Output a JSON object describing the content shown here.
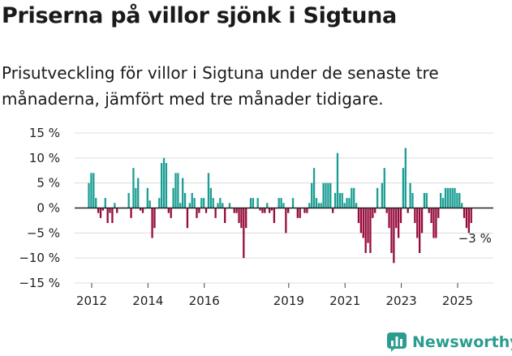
{
  "title": "Priserna på villor sjönk i Sigtuna",
  "subtitle": "Prisutveckling för villor i Sigtuna under de senaste tre månaderna, jämfört med tre månader tidigare.",
  "brand": "Newsworthy",
  "colors": {
    "positive": "#1a9e93",
    "negative": "#960a3c",
    "grid": "#dcdcdc",
    "zero": "#222222"
  },
  "chart_data": {
    "type": "bar",
    "title": "Priserna på villor sjönk i Sigtuna",
    "ylabel": "",
    "xlabel": "",
    "ylim": [
      -15,
      15
    ],
    "y_ticks": [
      15,
      10,
      5,
      0,
      -5,
      -10,
      -15
    ],
    "y_tick_labels": [
      "15 %",
      "10 %",
      "5 %",
      "0 %",
      "−5 %",
      "−10 %",
      "−15 %"
    ],
    "x_ticks": [
      2012,
      2014,
      2016,
      2019,
      2021,
      2023,
      2025
    ],
    "x_start": 2011.9,
    "step_years": 0.08333,
    "last_value_label": "−3 %",
    "values": [
      5,
      7,
      7,
      2,
      -1,
      -2,
      -0.5,
      2,
      -3,
      -1,
      -3,
      1,
      -1,
      0,
      0,
      0,
      0,
      3,
      -2,
      8,
      4,
      6,
      -0.5,
      -1,
      0,
      4,
      1.5,
      -6,
      -4,
      0,
      2,
      9,
      10,
      9,
      -1,
      -2,
      4,
      7,
      7,
      1,
      6,
      3,
      -4,
      1,
      3,
      2,
      -2,
      -1,
      2,
      2,
      -1,
      7,
      4,
      2,
      -2,
      1,
      2,
      1,
      -3,
      0,
      1,
      0,
      -1,
      -1,
      -3,
      -4,
      -10,
      -4,
      0,
      2,
      2,
      0,
      2,
      -0.5,
      -1,
      -1,
      1,
      -1,
      -0.5,
      -3,
      0,
      2,
      2,
      1,
      -5,
      -1,
      0,
      2,
      0,
      -2,
      -2,
      0,
      -1,
      -1,
      1,
      5,
      8,
      2,
      1,
      1,
      5,
      5,
      5,
      5,
      -1,
      3,
      11,
      3,
      3,
      1,
      2,
      2,
      4,
      4,
      1,
      -3,
      -5,
      -6,
      -9,
      -7,
      -9,
      -2,
      -1,
      4,
      0,
      5,
      8,
      -1,
      -4,
      -9,
      -11,
      -4,
      -6,
      -3,
      8,
      12,
      -1,
      5,
      3,
      -3,
      -6,
      -9,
      -5,
      3,
      3,
      -1,
      -3,
      -6,
      -6,
      -2,
      3,
      2,
      4,
      4,
      4,
      4,
      4,
      3,
      3,
      1,
      -2,
      -4,
      -5,
      -3
    ]
  }
}
